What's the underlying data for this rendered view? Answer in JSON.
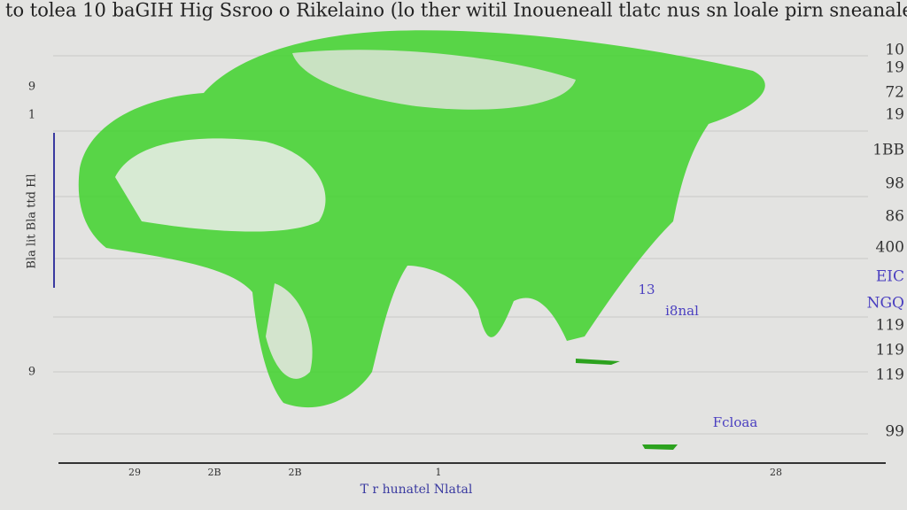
{
  "header": {
    "title": "to tolea 10 baGIH Hig Ssroo o Rikelaino (lo ther witil Inoueneall tlatc nus sn loale pirn sneanale"
  },
  "left_axis": {
    "labels": [
      "9",
      "1",
      "Bla lit Bla ttd Hl",
      "9"
    ]
  },
  "right_labels": [
    "10",
    "19",
    "72",
    "19",
    "1BB",
    "98",
    "86",
    "400",
    "EIC",
    "NGQ",
    "119",
    "119",
    "119",
    "99"
  ],
  "bottom_labels": [
    "29",
    "2B",
    "2B",
    "1",
    "28"
  ],
  "x_axis_label": "T r hunatel Nlatal",
  "annotations": [
    "i8nal",
    "13",
    "Fcloaa"
  ]
}
